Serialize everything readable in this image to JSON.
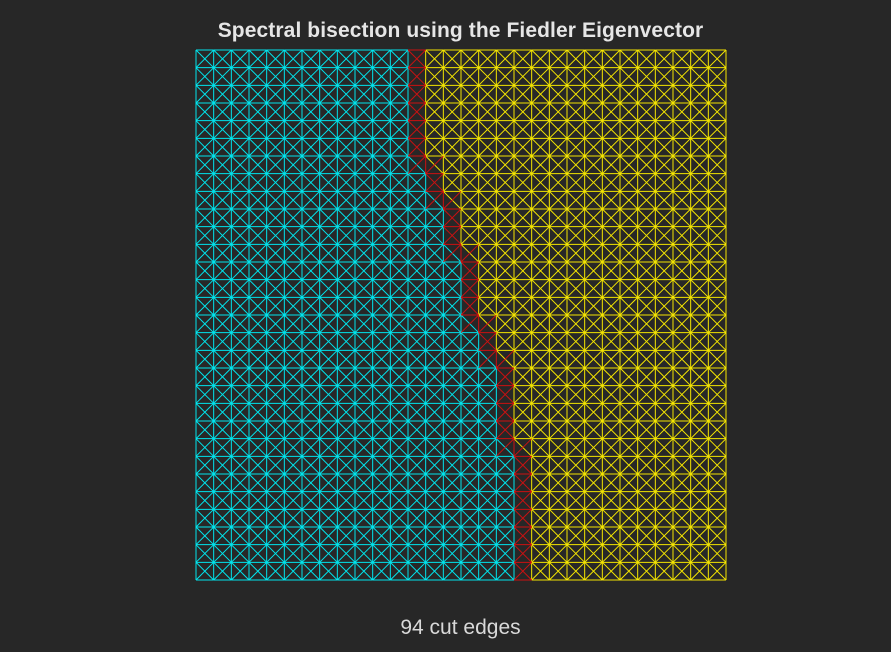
{
  "figure": {
    "title": "Spectral bisection using the Fiedler Eigenvector",
    "caption": "94 cut edges"
  },
  "chart_data": {
    "type": "mesh-partition",
    "grid": {
      "cols": 30,
      "rows": 30
    },
    "boundary_by_row": [
      12,
      12,
      12,
      12,
      12,
      12,
      12,
      13,
      13,
      14,
      14,
      14,
      15,
      15,
      15,
      15,
      16,
      16,
      17,
      17,
      17,
      17,
      17,
      18,
      18,
      18,
      18,
      18,
      18,
      18
    ],
    "partitions": [
      {
        "name": "",
        "color": "#00e5ee"
      },
      {
        "name": "",
        "color": "#f5e600"
      }
    ],
    "cut_color": "#cc1111",
    "cut_edges": 94
  }
}
